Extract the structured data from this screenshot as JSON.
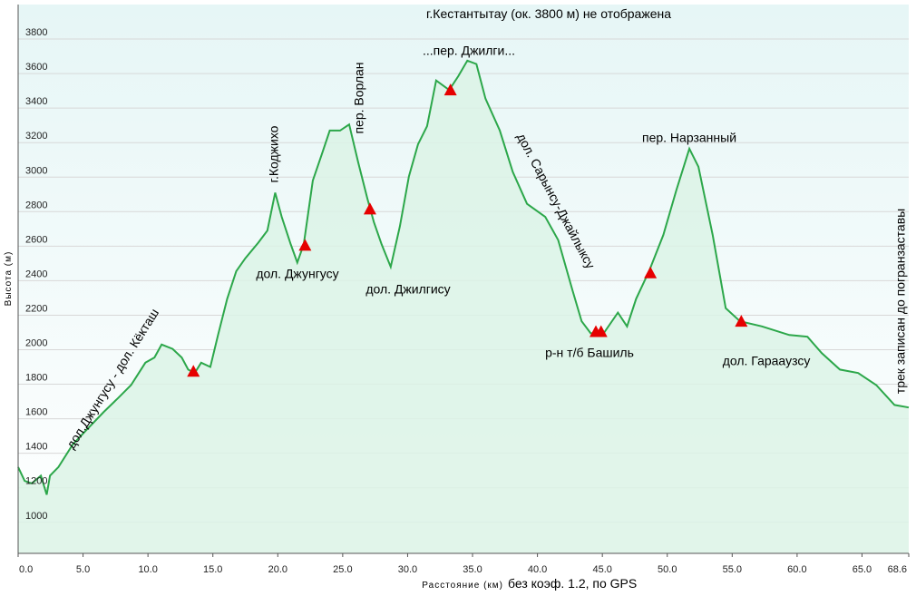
{
  "chart_data": {
    "type": "area",
    "title": "г.Кестантытау (ок. 3800 м) не отображена",
    "y_label": "Высота (м)",
    "x_label": "Расстояние (км)",
    "x_note": "без коэф. 1.2, по GPS",
    "color": "#2ca74a",
    "fill": "#dcf3e6",
    "grid": true,
    "xlim": [
      0,
      68.6
    ],
    "ylim": [
      820,
      4000
    ],
    "xticks": [
      {
        "value": 0,
        "label": "0.0"
      },
      {
        "value": 5,
        "label": "5.0"
      },
      {
        "value": 10,
        "label": "10.0"
      },
      {
        "value": 15,
        "label": "15.0"
      },
      {
        "value": 20,
        "label": "20.0"
      },
      {
        "value": 25,
        "label": "25.0"
      },
      {
        "value": 30,
        "label": "30.0"
      },
      {
        "value": 35,
        "label": "35.0"
      },
      {
        "value": 40,
        "label": "40.0"
      },
      {
        "value": 45,
        "label": "45.0"
      },
      {
        "value": 50,
        "label": "50.0"
      },
      {
        "value": 55,
        "label": "55.0"
      },
      {
        "value": 60,
        "label": "60.0"
      },
      {
        "value": 65,
        "label": "65.0"
      },
      68.6
    ],
    "yticks": [
      1000,
      1200,
      1400,
      1600,
      1800,
      2000,
      2200,
      2400,
      2600,
      2800,
      3000,
      3200,
      3400,
      3600,
      3800
    ],
    "x": [
      0,
      0.5,
      1.05,
      1.75,
      2.2,
      2.45,
      3.1,
      4.2,
      5.2,
      6.6,
      7.7,
      8.7,
      9.8,
      10.5,
      11.05,
      11.9,
      12.6,
      13.1,
      13.6,
      14.1,
      14.8,
      15.4,
      16.1,
      16.8,
      17.5,
      18.5,
      19.2,
      19.8,
      20.3,
      21.0,
      21.5,
      22.0,
      22.7,
      23.4,
      24.0,
      24.8,
      25.5,
      26.2,
      26.9,
      27.4,
      28.0,
      28.7,
      29.4,
      30.1,
      30.8,
      31.5,
      32.2,
      33.2,
      33.9,
      34.6,
      35.3,
      36.0,
      37.1,
      38.1,
      39.2,
      40.6,
      41.6,
      42.7,
      43.4,
      44.1,
      45.1,
      46.2,
      46.9,
      47.6,
      48.6,
      49.7,
      50.7,
      51.7,
      52.4,
      53.5,
      54.5,
      55.6,
      57.3,
      59.4,
      60.8,
      61.9,
      63.3,
      64.7,
      66.1,
      67.5,
      68.6
    ],
    "values": [
      1320,
      1240,
      1225,
      1270,
      1160,
      1270,
      1320,
      1450,
      1530,
      1640,
      1720,
      1795,
      1925,
      1955,
      2030,
      2005,
      1955,
      1885,
      1865,
      1925,
      1900,
      2085,
      2295,
      2455,
      2530,
      2620,
      2690,
      2910,
      2770,
      2610,
      2505,
      2610,
      2980,
      3135,
      3270,
      3270,
      3305,
      3085,
      2875,
      2740,
      2610,
      2480,
      2715,
      3005,
      3190,
      3295,
      3560,
      3505,
      3585,
      3675,
      3655,
      3455,
      3270,
      3030,
      2845,
      2770,
      2635,
      2345,
      2165,
      2095,
      2095,
      2215,
      2135,
      2295,
      2455,
      2665,
      2925,
      3165,
      3060,
      2665,
      2240,
      2165,
      2135,
      2085,
      2075,
      1980,
      1885,
      1865,
      1795,
      1680,
      1665
    ],
    "waypoints": {
      "color": "#e60000",
      "x": [
        13.5,
        22.1,
        27.1,
        33.3,
        44.5,
        44.9,
        48.7,
        55.7
      ],
      "values": [
        1870,
        2600,
        2810,
        3500,
        2100,
        2100,
        2440,
        2160
      ]
    },
    "annotations": [
      "дол.Джунгусу - дол. Кёкташ",
      "г.Коджихо",
      "дол. Джунгусу",
      "пер. Ворлан",
      "дол. Джилгису",
      "...пер. Джилги...",
      "дол. Сарынсу-Джайлыксу",
      "р-н т/б Башиль",
      "пер. Нарзанный",
      "дол. Гарааузсу",
      "трек записан до погранзаставы"
    ]
  }
}
